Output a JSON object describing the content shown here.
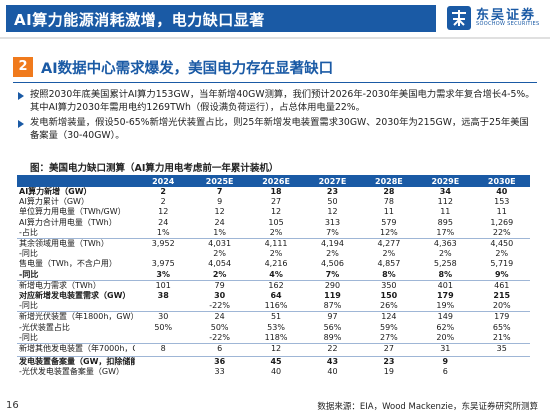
{
  "header": {
    "title": "AI算力能源消耗激增，电力缺口显著"
  },
  "logo": {
    "name": "东吴证券",
    "subtitle": "SOOCHOW SECURITIES"
  },
  "section": {
    "number": "2",
    "title": "AI数据中心需求爆发，美国电力存在显著缺口"
  },
  "bullets": [
    "按照2030年底美国累计AI算力153GW，当年新增40GW测算，我们预计2026年-2030年美国电力需求年复合增长4-5%。其中AI算力2030年需用电约1269TWh（假设满负荷运行），占总体用电量22%。",
    "发电新增装量，假设50-65%新增光伏装置占比，则25年新增发电装置需求30GW、2030年为215GW，远高于25年美国备案量（30-40GW）。"
  ],
  "table": {
    "title": "图：美国电力缺口测算（AI算力用电考虑前一年累计装机）",
    "columns": [
      "",
      "2024",
      "2025E",
      "2026E",
      "2027E",
      "2028E",
      "2029E",
      "2030E"
    ],
    "rows": [
      {
        "label": "AI算力新增（GW）",
        "values": [
          "2",
          "7",
          "18",
          "23",
          "28",
          "34",
          "40"
        ],
        "bold": true
      },
      {
        "label": "AI算力累计（GW）",
        "values": [
          "2",
          "9",
          "27",
          "50",
          "78",
          "112",
          "153"
        ]
      },
      {
        "label": "单位算力用电量（TWh/GW）",
        "values": [
          "12",
          "12",
          "12",
          "12",
          "11",
          "11",
          "11"
        ]
      },
      {
        "label": "AI算力合计用电量（TWh）",
        "values": [
          "24",
          "24",
          "105",
          "313",
          "579",
          "895",
          "1,269"
        ]
      },
      {
        "label": "-占比",
        "values": [
          "1%",
          "1%",
          "2%",
          "7%",
          "12%",
          "17%",
          "22%"
        ]
      },
      {
        "label": "其余领域用电量（TWh）",
        "values": [
          "3,952",
          "4,031",
          "4,111",
          "4,194",
          "4,277",
          "4,363",
          "4,450"
        ],
        "sep": true
      },
      {
        "label": "-同比",
        "values": [
          "",
          "2%",
          "2%",
          "2%",
          "2%",
          "2%",
          "2%"
        ]
      },
      {
        "label": "售电量（TWh，不含户用）",
        "values": [
          "3,975",
          "4,054",
          "4,216",
          "4,506",
          "4,857",
          "5,258",
          "5,719"
        ]
      },
      {
        "label": "-同比",
        "values": [
          "3%",
          "2%",
          "4%",
          "7%",
          "8%",
          "8%",
          "9%"
        ],
        "bold": true
      },
      {
        "label": "新增电力需求（TWh）",
        "values": [
          "101",
          "79",
          "162",
          "290",
          "350",
          "401",
          "461"
        ],
        "sep": true
      },
      {
        "label": "对应新增发电装置需求（GW）",
        "values": [
          "38",
          "30",
          "64",
          "119",
          "150",
          "179",
          "215"
        ],
        "bold": true
      },
      {
        "label": "-同比",
        "values": [
          "",
          "-22%",
          "116%",
          "87%",
          "26%",
          "19%",
          "20%"
        ]
      },
      {
        "label": "新增光伏装置（年1800h，GW）",
        "values": [
          "30",
          "24",
          "51",
          "97",
          "124",
          "149",
          "179"
        ],
        "sep": true
      },
      {
        "label": "-光伏装置占比",
        "values": [
          "50%",
          "50%",
          "53%",
          "56%",
          "59%",
          "62%",
          "65%"
        ]
      },
      {
        "label": "-同比",
        "values": [
          "",
          "-22%",
          "118%",
          "89%",
          "27%",
          "20%",
          "21%"
        ]
      },
      {
        "label": "新增其他发电装置（年7000h，GW）",
        "values": [
          "8",
          "6",
          "12",
          "22",
          "27",
          "31",
          "35"
        ],
        "sep": true
      },
      {
        "gap": true
      },
      {
        "label": "发电装置备案量（GW，扣除储能）",
        "values": [
          "",
          "36",
          "45",
          "43",
          "23",
          "9",
          ""
        ],
        "bold": true,
        "sep": true
      },
      {
        "label": "-光伏发电装置备案量（GW）",
        "values": [
          "",
          "33",
          "40",
          "40",
          "19",
          "6",
          ""
        ]
      }
    ]
  },
  "footer": {
    "page": "16",
    "source": "数据来源：EIA，Wood Mackenzie，东吴证券研究所测算"
  },
  "colors": {
    "primary": "#1a5aa5",
    "accent": "#f07a1c"
  }
}
